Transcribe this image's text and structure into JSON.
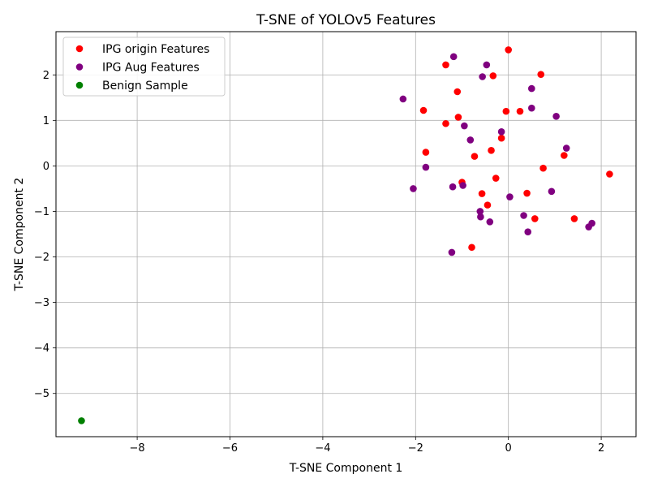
{
  "chart_data": {
    "type": "scatter",
    "title": "T-SNE of YOLOv5 Features",
    "xlabel": "T-SNE Component 1",
    "ylabel": "T-SNE Component 2",
    "xlim": [
      -9.75,
      2.75
    ],
    "ylim": [
      -5.95,
      2.95
    ],
    "xticks": [
      -8,
      -6,
      -4,
      -2,
      0,
      2
    ],
    "yticks": [
      -5,
      -4,
      -3,
      -2,
      -1,
      0,
      1,
      2
    ],
    "grid": true,
    "legend_position": "top-left",
    "series": [
      {
        "name": "IPG origin Features",
        "color": "#ff0000",
        "points": [
          [
            0.0,
            2.55
          ],
          [
            -1.35,
            2.22
          ],
          [
            0.7,
            2.01
          ],
          [
            -0.33,
            1.98
          ],
          [
            -1.1,
            1.63
          ],
          [
            -1.83,
            1.22
          ],
          [
            -0.05,
            1.2
          ],
          [
            0.25,
            1.2
          ],
          [
            -1.08,
            1.07
          ],
          [
            -1.35,
            0.93
          ],
          [
            -0.15,
            0.61
          ],
          [
            -0.37,
            0.34
          ],
          [
            -1.78,
            0.3
          ],
          [
            -0.73,
            0.21
          ],
          [
            1.2,
            0.23
          ],
          [
            0.75,
            -0.05
          ],
          [
            2.18,
            -0.18
          ],
          [
            -0.27,
            -0.27
          ],
          [
            -1.0,
            -0.36
          ],
          [
            -0.57,
            -0.61
          ],
          [
            0.4,
            -0.6
          ],
          [
            -0.45,
            -0.86
          ],
          [
            0.57,
            -1.16
          ],
          [
            1.42,
            -1.16
          ],
          [
            -0.79,
            -1.79
          ]
        ]
      },
      {
        "name": "IPG Aug Features",
        "color": "#800080",
        "points": [
          [
            -1.18,
            2.4
          ],
          [
            -0.47,
            2.22
          ],
          [
            -0.56,
            1.96
          ],
          [
            0.5,
            1.7
          ],
          [
            -2.27,
            1.47
          ],
          [
            0.5,
            1.27
          ],
          [
            1.03,
            1.09
          ],
          [
            -0.95,
            0.88
          ],
          [
            -0.15,
            0.75
          ],
          [
            -0.82,
            0.57
          ],
          [
            1.25,
            0.39
          ],
          [
            -1.78,
            -0.03
          ],
          [
            -2.05,
            -0.5
          ],
          [
            -1.2,
            -0.46
          ],
          [
            -0.98,
            -0.43
          ],
          [
            0.03,
            -0.68
          ],
          [
            0.93,
            -0.56
          ],
          [
            -0.61,
            -1.0
          ],
          [
            -0.6,
            -1.12
          ],
          [
            0.33,
            -1.09
          ],
          [
            -0.4,
            -1.23
          ],
          [
            1.8,
            -1.26
          ],
          [
            1.73,
            -1.34
          ],
          [
            0.42,
            -1.45
          ],
          [
            -1.22,
            -1.9
          ]
        ]
      },
      {
        "name": "Benign Sample",
        "color": "#008000",
        "points": [
          [
            -9.2,
            -5.6
          ]
        ]
      }
    ]
  }
}
